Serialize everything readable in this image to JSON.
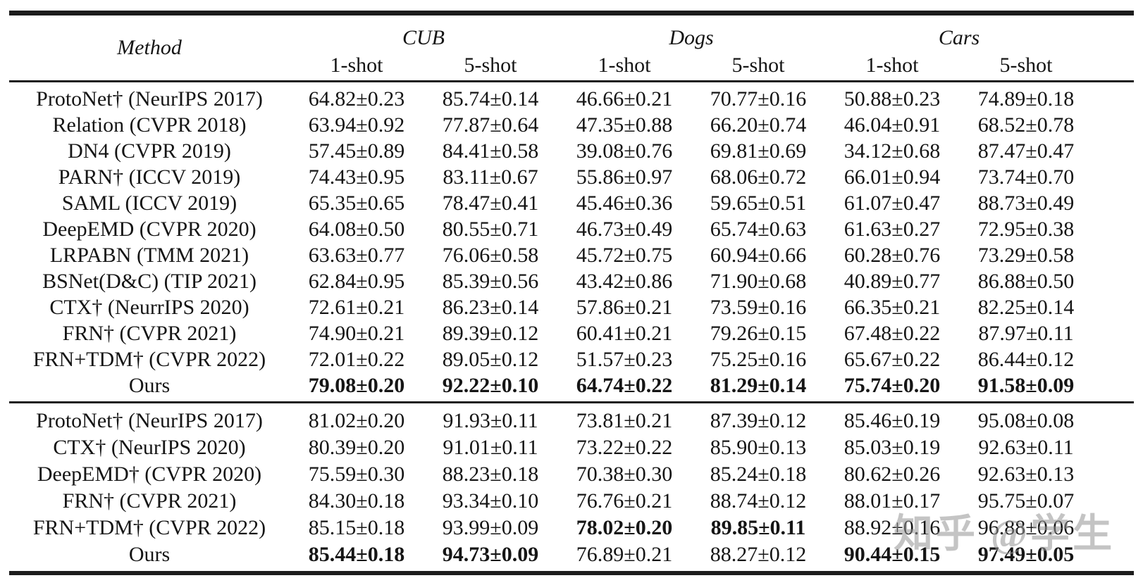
{
  "table": {
    "method_header": "Method",
    "groups": [
      {
        "label": "CUB",
        "cols": [
          "1-shot",
          "5-shot"
        ]
      },
      {
        "label": "Dogs",
        "cols": [
          "1-shot",
          "5-shot"
        ]
      },
      {
        "label": "Cars",
        "cols": [
          "1-shot",
          "5-shot"
        ]
      }
    ],
    "sections": [
      {
        "rows": [
          {
            "method": "ProtoNet† (NeurIPS 2017)",
            "values": [
              "64.82±0.23",
              "85.74±0.14",
              "46.66±0.21",
              "70.77±0.16",
              "50.88±0.23",
              "74.89±0.18"
            ],
            "bold": [
              false,
              false,
              false,
              false,
              false,
              false
            ]
          },
          {
            "method": "Relation (CVPR 2018)",
            "values": [
              "63.94±0.92",
              "77.87±0.64",
              "47.35±0.88",
              "66.20±0.74",
              "46.04±0.91",
              "68.52±0.78"
            ],
            "bold": [
              false,
              false,
              false,
              false,
              false,
              false
            ]
          },
          {
            "method": "DN4 (CVPR 2019)",
            "values": [
              "57.45±0.89",
              "84.41±0.58",
              "39.08±0.76",
              "69.81±0.69",
              "34.12±0.68",
              "87.47±0.47"
            ],
            "bold": [
              false,
              false,
              false,
              false,
              false,
              false
            ]
          },
          {
            "method": "PARN† (ICCV 2019)",
            "values": [
              "74.43±0.95",
              "83.11±0.67",
              "55.86±0.97",
              "68.06±0.72",
              "66.01±0.94",
              "73.74±0.70"
            ],
            "bold": [
              false,
              false,
              false,
              false,
              false,
              false
            ]
          },
          {
            "method": "SAML (ICCV 2019)",
            "values": [
              "65.35±0.65",
              "78.47±0.41",
              "45.46±0.36",
              "59.65±0.51",
              "61.07±0.47",
              "88.73±0.49"
            ],
            "bold": [
              false,
              false,
              false,
              false,
              false,
              false
            ]
          },
          {
            "method": "DeepEMD (CVPR 2020)",
            "values": [
              "64.08±0.50",
              "80.55±0.71",
              "46.73±0.49",
              "65.74±0.63",
              "61.63±0.27",
              "72.95±0.38"
            ],
            "bold": [
              false,
              false,
              false,
              false,
              false,
              false
            ]
          },
          {
            "method": "LRPABN (TMM 2021)",
            "values": [
              "63.63±0.77",
              "76.06±0.58",
              "45.72±0.75",
              "60.94±0.66",
              "60.28±0.76",
              "73.29±0.58"
            ],
            "bold": [
              false,
              false,
              false,
              false,
              false,
              false
            ]
          },
          {
            "method": "BSNet(D&C) (TIP 2021)",
            "values": [
              "62.84±0.95",
              "85.39±0.56",
              "43.42±0.86",
              "71.90±0.68",
              "40.89±0.77",
              "86.88±0.50"
            ],
            "bold": [
              false,
              false,
              false,
              false,
              false,
              false
            ]
          },
          {
            "method": "CTX† (NeurrIPS 2020)",
            "values": [
              "72.61±0.21",
              "86.23±0.14",
              "57.86±0.21",
              "73.59±0.16",
              "66.35±0.21",
              "82.25±0.14"
            ],
            "bold": [
              false,
              false,
              false,
              false,
              false,
              false
            ]
          },
          {
            "method": "FRN† (CVPR 2021)",
            "values": [
              "74.90±0.21",
              "89.39±0.12",
              "60.41±0.21",
              "79.26±0.15",
              "67.48±0.22",
              "87.97±0.11"
            ],
            "bold": [
              false,
              false,
              false,
              false,
              false,
              false
            ]
          },
          {
            "method": "FRN+TDM† (CVPR 2022)",
            "values": [
              "72.01±0.22",
              "89.05±0.12",
              "51.57±0.23",
              "75.25±0.16",
              "65.67±0.22",
              "86.44±0.12"
            ],
            "bold": [
              false,
              false,
              false,
              false,
              false,
              false
            ]
          },
          {
            "method": "Ours",
            "values": [
              "79.08±0.20",
              "92.22±0.10",
              "64.74±0.22",
              "81.29±0.14",
              "75.74±0.20",
              "91.58±0.09"
            ],
            "bold": [
              true,
              true,
              true,
              true,
              true,
              true
            ]
          }
        ]
      },
      {
        "rows": [
          {
            "method": "ProtoNet†  (NeurIPS 2017)",
            "values": [
              "81.02±0.20",
              "91.93±0.11",
              "73.81±0.21",
              "87.39±0.12",
              "85.46±0.19",
              "95.08±0.08"
            ],
            "bold": [
              false,
              false,
              false,
              false,
              false,
              false
            ]
          },
          {
            "method": "CTX† (NeurIPS 2020)",
            "values": [
              "80.39±0.20",
              "91.01±0.11",
              "73.22±0.22",
              "85.90±0.13",
              "85.03±0.19",
              "92.63±0.11"
            ],
            "bold": [
              false,
              false,
              false,
              false,
              false,
              false
            ]
          },
          {
            "method": "DeepEMD† (CVPR 2020)",
            "values": [
              "75.59±0.30",
              "88.23±0.18",
              "70.38±0.30",
              "85.24±0.18",
              "80.62±0.26",
              "92.63±0.13"
            ],
            "bold": [
              false,
              false,
              false,
              false,
              false,
              false
            ]
          },
          {
            "method": "FRN† (CVPR 2021)",
            "values": [
              "84.30±0.18",
              "93.34±0.10",
              "76.76±0.21",
              "88.74±0.12",
              "88.01±0.17",
              "95.75±0.07"
            ],
            "bold": [
              false,
              false,
              false,
              false,
              false,
              false
            ]
          },
          {
            "method": "FRN+TDM† (CVPR 2022)",
            "values": [
              "85.15±0.18",
              "93.99±0.09",
              "78.02±0.20",
              "89.85±0.11",
              "88.92±0.16",
              "96.88±0.06"
            ],
            "bold": [
              false,
              false,
              true,
              true,
              false,
              false
            ]
          },
          {
            "method": "Ours",
            "values": [
              "85.44±0.18",
              "94.73±0.09",
              "76.89±0.21",
              "88.27±0.12",
              "90.44±0.15",
              "97.49±0.05"
            ],
            "bold": [
              true,
              true,
              false,
              false,
              true,
              true
            ]
          }
        ]
      }
    ]
  },
  "watermark": {
    "text": "知乎 @学生",
    "color": "#949494"
  }
}
